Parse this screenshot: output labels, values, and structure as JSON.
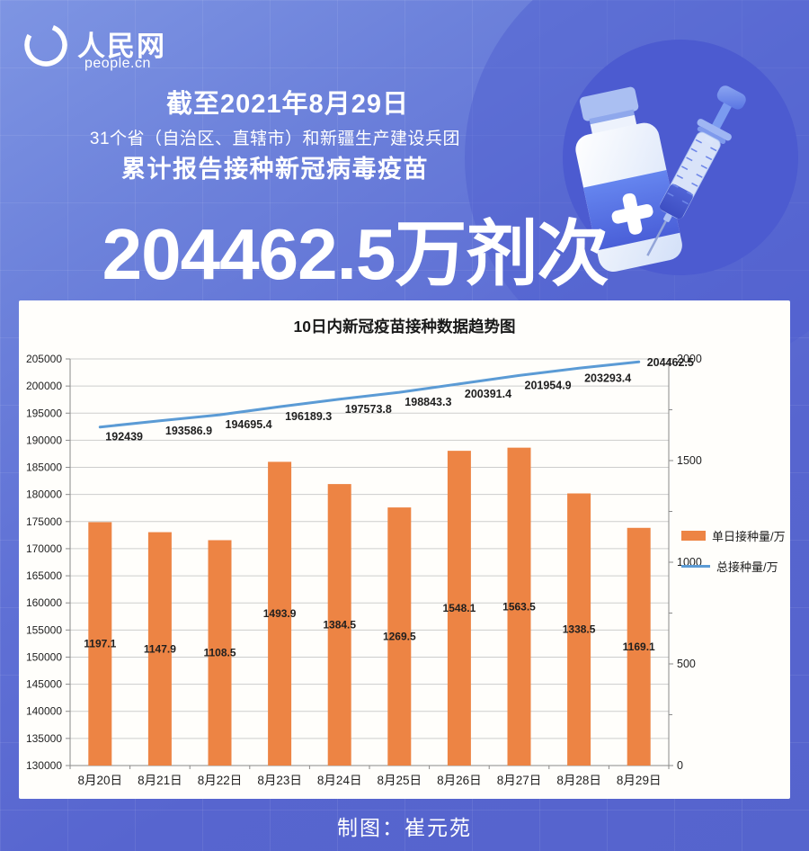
{
  "brand": {
    "logo_cn": "人民网",
    "logo_en": "people.cn"
  },
  "header": {
    "date_line": "截至2021年8月29日",
    "scope_line": "31个省（自治区、直辖市）和新疆生产建设兵团",
    "report_line": "累计报告接种新冠病毒疫苗",
    "headline_number": "204462.5万剂次"
  },
  "chart_data": {
    "type": "combo-bar-line",
    "title": "10日内新冠疫苗接种数据趋势图",
    "categories": [
      "8月20日",
      "8月21日",
      "8月22日",
      "8月23日",
      "8月24日",
      "8月25日",
      "8月26日",
      "8月27日",
      "8月28日",
      "8月29日"
    ],
    "series": [
      {
        "name": "单日接种量/万",
        "type": "bar",
        "axis": "right",
        "color": "#ED8444",
        "values": [
          1197.1,
          1147.9,
          1108.5,
          1493.9,
          1384.5,
          1269.5,
          1548.1,
          1563.5,
          1338.5,
          1169.1
        ]
      },
      {
        "name": "总接种量/万",
        "type": "line",
        "axis": "left",
        "color": "#5B9BD5",
        "values": [
          192439,
          193586.9,
          194695.4,
          196189.3,
          197573.8,
          198843.3,
          200391.4,
          201954.9,
          203293.4,
          204462.5
        ]
      }
    ],
    "left_axis": {
      "min": 130000,
      "max": 205000,
      "step": 5000
    },
    "right_axis": {
      "min": 0,
      "max": 2000,
      "step": 500,
      "minor_step": 250
    },
    "legend_position": "right",
    "grid": "horizontal"
  },
  "footer": {
    "credit": "制图：崔元苑"
  },
  "colors": {
    "background_blue": "#5B6BD2",
    "circle_blue": "#4C5BD0",
    "bar_orange": "#ED8444",
    "line_blue": "#5B9BD5",
    "panel_white": "#FFFEFB"
  }
}
